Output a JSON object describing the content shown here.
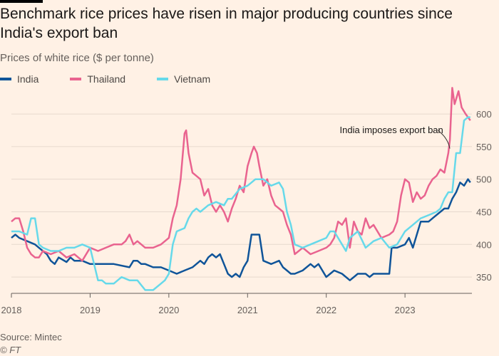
{
  "header": {
    "title": "Benchmark rice prices have risen in major producing countries since India's export ban",
    "subtitle": "Prices of white rice ($ per tonne)"
  },
  "footer": {
    "source": "Source: Mintec",
    "copyright": "© FT"
  },
  "colors": {
    "India": "#0f5499",
    "Thailand": "#e9638f",
    "Vietnam": "#66d9ea"
  },
  "chart_data": {
    "type": "line",
    "ylim": [
      325,
      635
    ],
    "xlim": [
      2018.0,
      2023.85
    ],
    "yticks": [
      350,
      400,
      450,
      500,
      550,
      600
    ],
    "xticks": [
      {
        "value": 2018,
        "label": "2018"
      },
      {
        "value": 2019,
        "label": "2019"
      },
      {
        "value": 2020,
        "label": "2020"
      },
      {
        "value": 2021,
        "label": "2021"
      },
      {
        "value": 2022,
        "label": "2022"
      },
      {
        "value": 2023,
        "label": "2023"
      }
    ],
    "grid": true,
    "legend": "top-left",
    "annotations": [
      {
        "text": "India imposes export ban",
        "x": 2023.54,
        "y": 575
      }
    ],
    "series": [
      {
        "name": "India",
        "x": [
          2018.0,
          2018.05,
          2018.1,
          2018.2,
          2018.3,
          2018.35,
          2018.45,
          2018.5,
          2018.55,
          2018.6,
          2018.7,
          2018.75,
          2018.8,
          2018.9,
          2019.0,
          2019.1,
          2019.2,
          2019.3,
          2019.5,
          2019.55,
          2019.6,
          2019.65,
          2019.7,
          2019.8,
          2019.9,
          2020.0,
          2020.1,
          2020.2,
          2020.3,
          2020.4,
          2020.45,
          2020.5,
          2020.55,
          2020.6,
          2020.65,
          2020.7,
          2020.75,
          2020.8,
          2020.85,
          2020.9,
          2020.95,
          2021.0,
          2021.05,
          2021.08,
          2021.15,
          2021.2,
          2021.3,
          2021.4,
          2021.45,
          2021.5,
          2021.55,
          2021.6,
          2021.7,
          2021.8,
          2021.85,
          2021.9,
          2021.95,
          2022.0,
          2022.05,
          2022.1,
          2022.2,
          2022.3,
          2022.35,
          2022.4,
          2022.5,
          2022.55,
          2022.6,
          2022.7,
          2022.8,
          2022.83,
          2022.9,
          2023.0,
          2023.05,
          2023.1,
          2023.2,
          2023.3,
          2023.35,
          2023.45,
          2023.5,
          2023.55,
          2023.6,
          2023.65,
          2023.7,
          2023.75,
          2023.8,
          2023.83
        ],
        "values": [
          410,
          415,
          410,
          405,
          400,
          395,
          385,
          375,
          370,
          380,
          373,
          380,
          375,
          375,
          370,
          370,
          370,
          370,
          365,
          375,
          375,
          370,
          370,
          365,
          365,
          360,
          355,
          360,
          365,
          375,
          370,
          380,
          385,
          380,
          385,
          370,
          355,
          350,
          355,
          350,
          365,
          375,
          415,
          415,
          415,
          375,
          370,
          375,
          365,
          360,
          355,
          355,
          360,
          370,
          365,
          370,
          360,
          350,
          355,
          360,
          355,
          345,
          350,
          355,
          355,
          350,
          355,
          355,
          355,
          395,
          395,
          400,
          410,
          395,
          435,
          435,
          440,
          450,
          455,
          455,
          470,
          480,
          495,
          490,
          500,
          495
        ]
      },
      {
        "name": "Thailand",
        "x": [
          2018.0,
          2018.05,
          2018.1,
          2018.15,
          2018.2,
          2018.25,
          2018.3,
          2018.35,
          2018.4,
          2018.5,
          2018.6,
          2018.7,
          2018.8,
          2018.9,
          2019.0,
          2019.1,
          2019.2,
          2019.3,
          2019.4,
          2019.45,
          2019.5,
          2019.55,
          2019.6,
          2019.7,
          2019.8,
          2019.9,
          2020.0,
          2020.05,
          2020.1,
          2020.15,
          2020.2,
          2020.22,
          2020.25,
          2020.3,
          2020.35,
          2020.4,
          2020.45,
          2020.5,
          2020.55,
          2020.6,
          2020.65,
          2020.7,
          2020.75,
          2020.8,
          2020.85,
          2020.9,
          2020.95,
          2021.0,
          2021.05,
          2021.08,
          2021.12,
          2021.15,
          2021.2,
          2021.25,
          2021.3,
          2021.35,
          2021.4,
          2021.45,
          2021.5,
          2021.55,
          2021.6,
          2021.65,
          2021.7,
          2021.8,
          2021.9,
          2022.0,
          2022.05,
          2022.1,
          2022.15,
          2022.2,
          2022.25,
          2022.3,
          2022.35,
          2022.4,
          2022.45,
          2022.5,
          2022.55,
          2022.6,
          2022.7,
          2022.8,
          2022.85,
          2022.9,
          2022.95,
          2023.0,
          2023.05,
          2023.1,
          2023.15,
          2023.2,
          2023.25,
          2023.3,
          2023.35,
          2023.4,
          2023.45,
          2023.5,
          2023.55,
          2023.57,
          2023.6,
          2023.63,
          2023.68,
          2023.72,
          2023.77,
          2023.83
        ],
        "values": [
          435,
          440,
          440,
          420,
          395,
          385,
          380,
          380,
          390,
          385,
          390,
          380,
          385,
          375,
          395,
          390,
          395,
          400,
          400,
          405,
          415,
          400,
          405,
          395,
          395,
          400,
          410,
          440,
          460,
          500,
          570,
          575,
          540,
          510,
          505,
          500,
          475,
          485,
          460,
          450,
          460,
          450,
          435,
          455,
          470,
          490,
          480,
          520,
          540,
          550,
          540,
          520,
          490,
          500,
          475,
          460,
          455,
          450,
          430,
          415,
          385,
          390,
          395,
          385,
          390,
          395,
          400,
          410,
          435,
          430,
          440,
          395,
          435,
          420,
          415,
          440,
          425,
          430,
          410,
          415,
          420,
          435,
          475,
          500,
          495,
          465,
          480,
          470,
          475,
          490,
          500,
          505,
          515,
          510,
          540,
          560,
          640,
          615,
          635,
          610,
          600,
          590
        ]
      },
      {
        "name": "Vietnam",
        "x": [
          2018.0,
          2018.05,
          2018.1,
          2018.2,
          2018.25,
          2018.3,
          2018.35,
          2018.4,
          2018.5,
          2018.6,
          2018.7,
          2018.8,
          2018.9,
          2019.0,
          2019.1,
          2019.15,
          2019.2,
          2019.3,
          2019.4,
          2019.5,
          2019.6,
          2019.7,
          2019.75,
          2019.8,
          2019.9,
          2019.95,
          2020.0,
          2020.05,
          2020.1,
          2020.2,
          2020.25,
          2020.3,
          2020.35,
          2020.4,
          2020.5,
          2020.6,
          2020.7,
          2020.75,
          2020.8,
          2020.9,
          2021.0,
          2021.05,
          2021.1,
          2021.2,
          2021.3,
          2021.4,
          2021.45,
          2021.5,
          2021.55,
          2021.6,
          2021.7,
          2021.8,
          2021.9,
          2022.0,
          2022.05,
          2022.1,
          2022.2,
          2022.25,
          2022.3,
          2022.4,
          2022.5,
          2022.6,
          2022.7,
          2022.8,
          2022.9,
          2023.0,
          2023.1,
          2023.2,
          2023.3,
          2023.4,
          2023.45,
          2023.5,
          2023.55,
          2023.6,
          2023.65,
          2023.7,
          2023.75,
          2023.8,
          2023.83
        ],
        "values": [
          420,
          420,
          420,
          415,
          440,
          440,
          400,
          395,
          390,
          390,
          395,
          395,
          400,
          395,
          345,
          345,
          340,
          340,
          350,
          345,
          345,
          330,
          330,
          330,
          340,
          345,
          355,
          400,
          420,
          425,
          440,
          450,
          455,
          450,
          460,
          465,
          460,
          470,
          470,
          485,
          490,
          495,
          500,
          500,
          490,
          495,
          485,
          450,
          430,
          400,
          395,
          400,
          405,
          410,
          420,
          420,
          400,
          390,
          410,
          420,
          395,
          405,
          410,
          395,
          400,
          420,
          430,
          440,
          445,
          450,
          455,
          470,
          480,
          480,
          540,
          540,
          590,
          595,
          595
        ]
      }
    ]
  }
}
